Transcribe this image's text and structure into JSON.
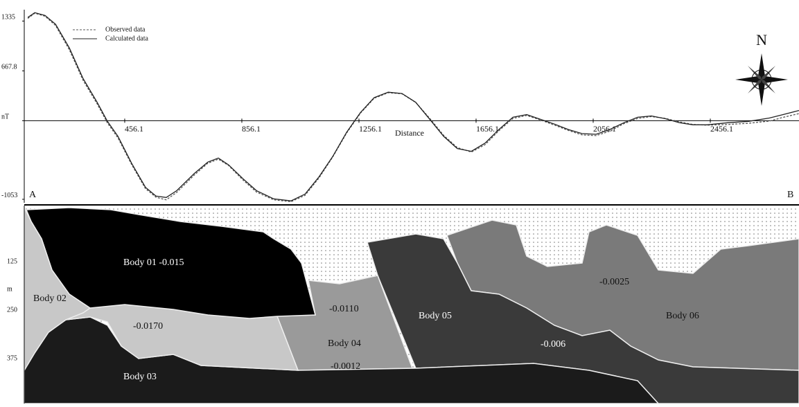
{
  "chart_data": {
    "type": "line",
    "x_label": "Distance",
    "x": [
      125,
      149,
      184,
      220,
      267,
      314,
      362,
      397,
      433,
      480,
      527,
      563,
      598,
      634,
      693,
      740,
      776,
      811,
      859,
      906,
      965,
      1024,
      1072,
      1119,
      1166,
      1214,
      1261,
      1308,
      1356,
      1403,
      1450,
      1498,
      1545,
      1592,
      1640,
      1687,
      1734,
      1782,
      1829,
      1876,
      1924,
      1971,
      2018,
      2066,
      2113,
      2161,
      2208,
      2255,
      2303,
      2350,
      2397,
      2445,
      2516,
      2587,
      2658,
      2705,
      2759
    ],
    "series": [
      {
        "name": "Observed data",
        "color": "#555555",
        "dash": true,
        "values": [
          1370,
          1440,
          1400,
          1275,
          950,
          540,
          225,
          -30,
          -230,
          -590,
          -910,
          -1025,
          -1060,
          -960,
          -730,
          -570,
          -515,
          -600,
          -790,
          -955,
          -1060,
          -1085,
          -1000,
          -770,
          -490,
          -165,
          100,
          300,
          375,
          360,
          245,
          30,
          -195,
          -360,
          -420,
          -320,
          -135,
          30,
          70,
          10,
          -60,
          -130,
          -190,
          -200,
          -140,
          -40,
          30,
          55,
          30,
          -15,
          -50,
          -60,
          -50,
          -35,
          -5,
          45,
          95
        ]
      },
      {
        "name": "Calculated data",
        "color": "#222222",
        "dash": false,
        "values": [
          1383,
          1447,
          1410,
          1292,
          974,
          564,
          246,
          -9,
          -209,
          -573,
          -892,
          -1010,
          -1029,
          -937,
          -710,
          -555,
          -500,
          -592,
          -774,
          -937,
          -1047,
          -1074,
          -983,
          -755,
          -482,
          -155,
          109,
          309,
          382,
          364,
          246,
          18,
          -209,
          -373,
          -410,
          -300,
          -118,
          46,
          82,
          18,
          -46,
          -118,
          -173,
          -182,
          -118,
          -27,
          46,
          64,
          27,
          -27,
          -55,
          -55,
          -27,
          -9,
          36,
          82,
          137
        ]
      }
    ],
    "xlim": [
      113,
      2759
    ],
    "ylim": [
      -1100,
      1450
    ],
    "xticks": [
      456.1,
      856.1,
      1256.1,
      1656.1,
      2056.1,
      2456.1
    ],
    "yticks": [
      1335,
      667.8,
      {
        "value": 0,
        "label": "nT"
      },
      -1053
    ]
  },
  "section": {
    "ends": [
      "A",
      "B"
    ],
    "depth_unit": "m",
    "depth_ticks": [
      "125",
      "250",
      "375"
    ],
    "labels": [
      "Body 01 -0.015",
      "Body 02",
      "-0.0170",
      "Body 03",
      "-0.0110",
      "Body 04",
      "-0.0012",
      "Body 05",
      "-0.006",
      "-0.0025",
      "Body 06"
    ]
  },
  "compass": {
    "label": "N"
  }
}
